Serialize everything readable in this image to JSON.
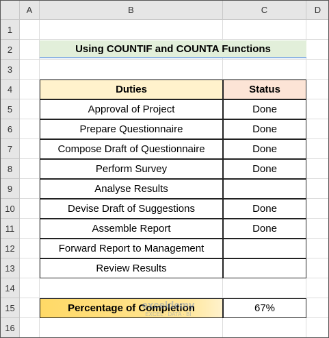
{
  "column_headers": [
    "A",
    "B",
    "C",
    "D"
  ],
  "row_numbers": [
    1,
    2,
    3,
    4,
    5,
    6,
    7,
    8,
    9,
    10,
    11,
    12,
    13,
    14,
    15,
    16
  ],
  "title": "Using COUNTIF and COUNTA Functions",
  "table": {
    "headers": [
      "Duties",
      "Status"
    ],
    "rows": [
      {
        "duty": "Approval of Project",
        "status": "Done"
      },
      {
        "duty": "Prepare Questionnaire",
        "status": "Done"
      },
      {
        "duty": "Compose Draft of Questionnaire",
        "status": "Done"
      },
      {
        "duty": "Perform Survey",
        "status": "Done"
      },
      {
        "duty": "Analyse Results"
      },
      {
        "duty": "Devise Draft of Suggestions",
        "status": "Done"
      },
      {
        "duty": "Assemble Report",
        "status": "Done"
      },
      {
        "duty": "Forward Report to Management"
      },
      {
        "duty": "Review Results"
      }
    ]
  },
  "summary": {
    "label": "Percentage of Completion",
    "value": "67%"
  },
  "watermark": {
    "brand": "exceldemy",
    "tagline": "EXCEL · DATA · BI"
  }
}
